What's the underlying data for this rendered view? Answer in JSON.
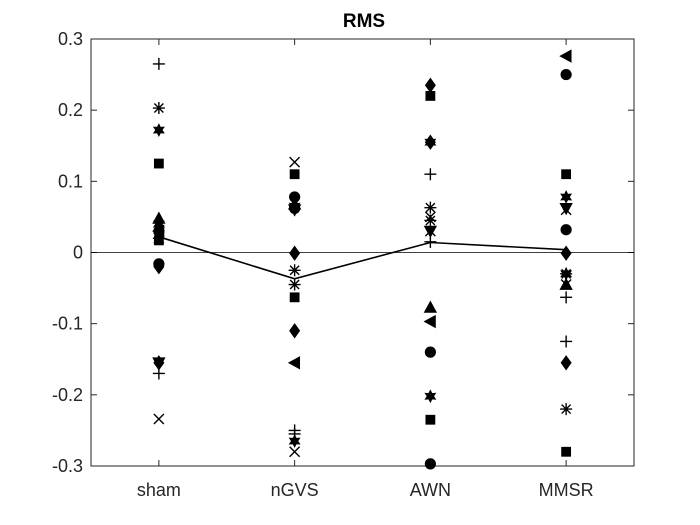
{
  "chart_data": {
    "type": "scatter",
    "title": "RMS",
    "xlabel": "",
    "ylabel": "",
    "categories": [
      "sham",
      "nGVS",
      "AWN",
      "MMSR"
    ],
    "ylim": [
      -0.3,
      0.3
    ],
    "yticks": [
      -0.3,
      -0.2,
      -0.1,
      0,
      0.1,
      0.2,
      0.3
    ],
    "ytick_labels": [
      "-0.3",
      "-0.2",
      "-0.1",
      "0",
      "0.1",
      "0.2",
      "0.3"
    ],
    "grid": false,
    "legend": "none",
    "zero_line": true,
    "mean_line": {
      "values": [
        0.022,
        -0.037,
        0.014,
        0.004
      ]
    },
    "series": [
      {
        "marker": "plus",
        "values": [
          0.265,
          -0.25,
          0.11,
          -0.063
        ]
      },
      {
        "marker": "plus",
        "values": [
          -0.17,
          -0.255,
          0.015,
          -0.125
        ]
      },
      {
        "marker": "asterisk",
        "values": [
          0.203,
          -0.045,
          0.063,
          -0.22
        ]
      },
      {
        "marker": "asterisk",
        "values": [
          0.02,
          -0.025,
          0.045,
          -0.03
        ]
      },
      {
        "marker": "hexagram",
        "values": [
          0.172,
          -0.265,
          -0.202,
          0.078
        ]
      },
      {
        "marker": "hexagram",
        "values": [
          0.04,
          0.065,
          0.155,
          -0.03
        ]
      },
      {
        "marker": "square",
        "values": [
          0.125,
          0.11,
          0.22,
          0.11
        ]
      },
      {
        "marker": "square",
        "values": [
          0.017,
          -0.063,
          -0.235,
          -0.28
        ]
      },
      {
        "marker": "triangle-up",
        "values": [
          0.048,
          0.068,
          -0.077,
          -0.045
        ]
      },
      {
        "marker": "triangle-down",
        "values": [
          -0.155,
          0.06,
          0.03,
          0.062
        ]
      },
      {
        "marker": "triangle-left",
        "values": [
          0.03,
          -0.155,
          -0.097,
          0.276
        ]
      },
      {
        "marker": "circle",
        "values": [
          0.03,
          0.078,
          -0.14,
          0.25
        ]
      },
      {
        "marker": "circle",
        "values": [
          -0.016,
          0.062,
          -0.297,
          0.032
        ]
      },
      {
        "marker": "diamond",
        "values": [
          -0.02,
          -0.001,
          0.235,
          -0.001
        ]
      },
      {
        "marker": "diamond",
        "values": [
          -0.155,
          -0.11,
          0.155,
          -0.155
        ]
      },
      {
        "marker": "x",
        "values": [
          -0.234,
          0.127,
          0.05,
          -0.045
        ]
      },
      {
        "marker": "x",
        "values": [
          0.02,
          -0.28,
          0.03,
          0.06
        ]
      }
    ]
  }
}
